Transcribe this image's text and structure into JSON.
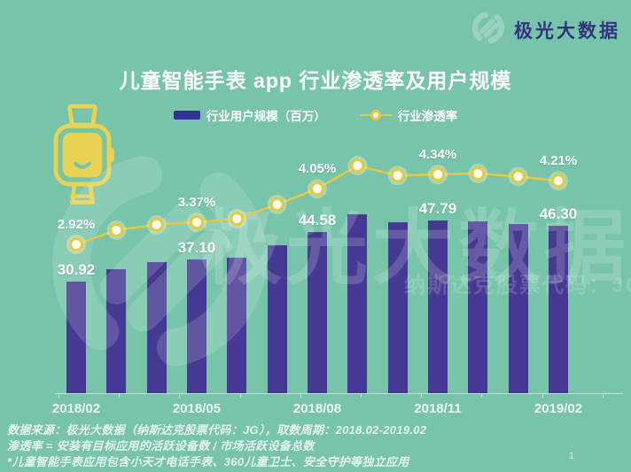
{
  "page": {
    "background": "#77c4ab",
    "page_number": "1"
  },
  "brand": {
    "name": "极光大数据",
    "name_color": "#32357e",
    "swirl_color": "#9bd2bc"
  },
  "title": {
    "text": "儿童智能手表 app 行业渗透率及用户规模"
  },
  "legend": {
    "bar_label": "行业用户规模（百万）",
    "line_label": "行业渗透率",
    "bar_color": "#2f3492",
    "line_color": "#e7c93e"
  },
  "watermark": {
    "big_text": "极光大数据",
    "sub_text": "纳斯达克股票代码：JG"
  },
  "icons": {
    "watch_color": "#ead253"
  },
  "footer": {
    "lines": [
      "数据来源：极光大数据（纳斯达克股票代码：JG），取数周期：2018.02-2019.02",
      "渗透率 = 安装有目标应用的活跃设备数 / 市场活跃设备总数",
      "*儿童智能手表应用包含小天才电话手表、360儿童卫士、安全守护等独立应用"
    ]
  },
  "chart_data": {
    "type": "bar",
    "combo": "bar+line",
    "title": "儿童智能手表 app 行业渗透率及用户规模",
    "categories": [
      "2018/02",
      "2018/03",
      "2018/04",
      "2018/05",
      "2018/06",
      "2018/07",
      "2018/08",
      "2018/09",
      "2018/10",
      "2018/11",
      "2018/12",
      "2019/01",
      "2019/02"
    ],
    "series": [
      {
        "name": "行业用户规模（百万）",
        "type": "bar",
        "color": "#453a92",
        "values": [
          30.92,
          34.4,
          36.3,
          37.1,
          37.6,
          41.0,
          44.58,
          49.6,
          47.4,
          47.79,
          47.6,
          46.9,
          46.3
        ]
      },
      {
        "name": "行业渗透率",
        "type": "line",
        "unit": "%",
        "color": "#e7c93e",
        "values": [
          2.92,
          3.21,
          3.32,
          3.37,
          3.44,
          3.73,
          4.05,
          4.52,
          4.32,
          4.34,
          4.36,
          4.3,
          4.21
        ]
      }
    ],
    "bar_labels": {
      "indices": [
        0,
        3,
        6,
        9,
        12
      ],
      "texts": [
        "30.92",
        "37.10",
        "44.58",
        "47.79",
        "46.30"
      ]
    },
    "line_labels": {
      "indices": [
        0,
        3,
        6,
        9,
        12
      ],
      "texts": [
        "2.92%",
        "3.37%",
        "4.05%",
        "4.34%",
        "4.21%"
      ]
    },
    "x_tick_labels": {
      "indices": [
        0,
        3,
        6,
        9,
        12
      ],
      "texts": [
        "2018/02",
        "2018/05",
        "2018/08",
        "2018/11",
        "2019/02"
      ]
    },
    "ylim_bar": [
      0,
      55
    ],
    "ylim_line_pct": [
      2.5,
      5.0
    ],
    "grid": false,
    "legend_position": "top"
  }
}
